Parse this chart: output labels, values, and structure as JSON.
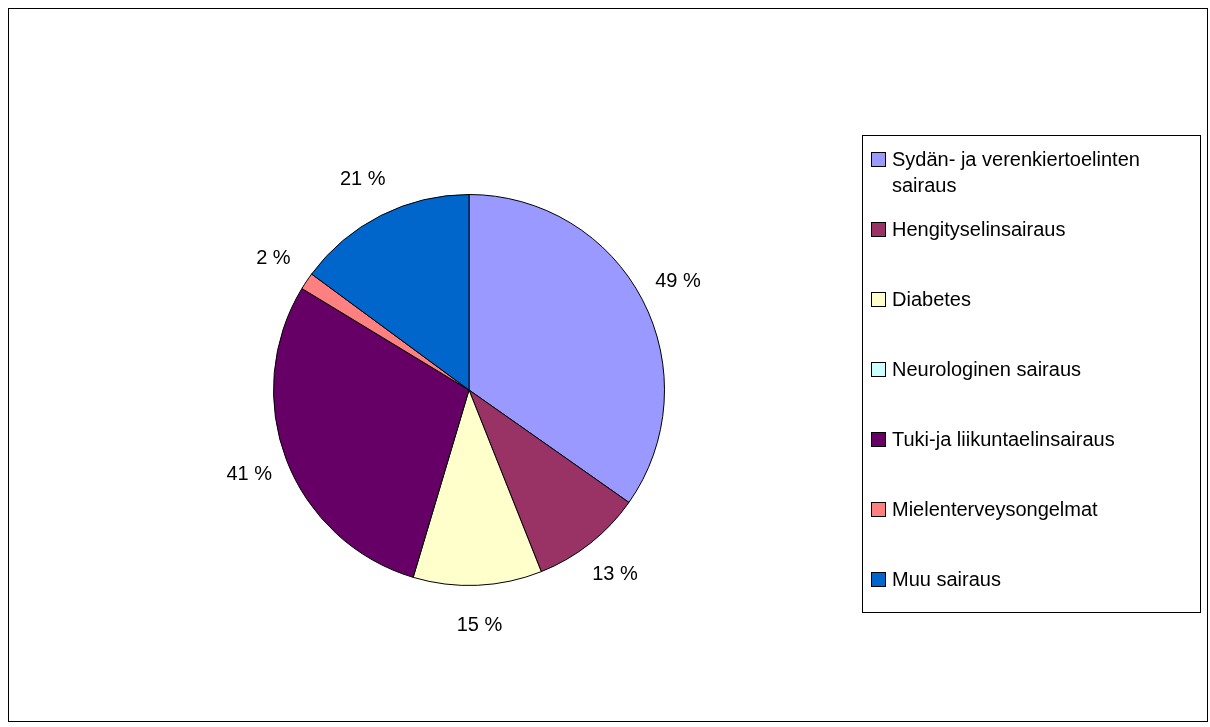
{
  "chart_data": {
    "type": "pie",
    "categories": [
      "Sydän- ja verenkiertoelinten sairaus",
      "Hengityselinsairaus",
      "Diabetes",
      "Neurologinen sairaus",
      "Tuki-ja liikuntaelinsairaus",
      "Mielenterveysongelmat",
      "Muu sairaus"
    ],
    "values": [
      49,
      13,
      15,
      0,
      41,
      2,
      21
    ],
    "colors": [
      "#9999ff",
      "#993366",
      "#ffffcc",
      "#ccffff",
      "#660066",
      "#ff8080",
      "#0066cc"
    ],
    "value_labels": [
      "49 %",
      "13 %",
      "15 %",
      null,
      "41 %",
      "2 %",
      "21 %"
    ],
    "legend": "right"
  }
}
